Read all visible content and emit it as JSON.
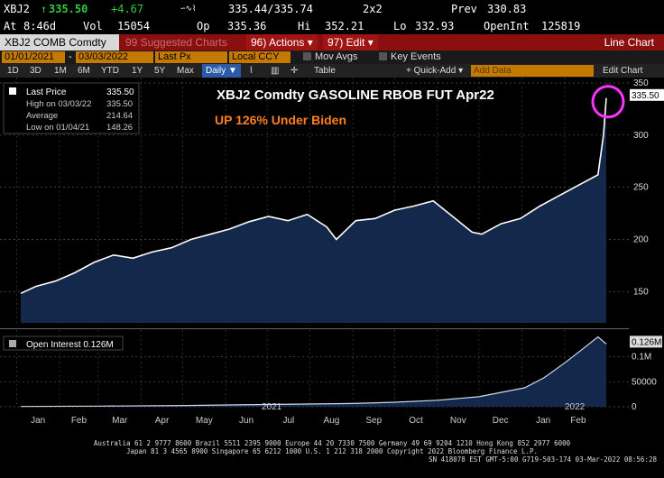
{
  "quote": {
    "ticker": "XBJ2",
    "last": "335.50",
    "change": "+4.67",
    "bid_ask": "335.44/335.74",
    "grid": "2x2",
    "prev_label": "Prev",
    "prev": "330.83",
    "at_label": "At",
    "at_time": "8:46d",
    "vol_label": "Vol",
    "vol": "15054",
    "op_label": "Op",
    "op": "335.36",
    "hi_label": "Hi",
    "hi": "352.21",
    "lo_label": "Lo",
    "lo": "332.93",
    "oi_label": "OpenInt",
    "oi": "125819"
  },
  "funcbar": {
    "security": "XBJ2 COMB Comdty",
    "suggested": "99 Suggested Charts",
    "actions": "96) Actions ▾",
    "edit": "97) Edit ▾",
    "chart_type": "Line Chart"
  },
  "daterow": {
    "start_date": "01/01/2021",
    "end_date": "03/03/2022",
    "field": "Last Px",
    "currency": "Local CCY",
    "mov_avgs": "Mov Avgs",
    "key_events": "Key Events"
  },
  "toolbar": {
    "periods": [
      "1D",
      "3D",
      "1M",
      "6M",
      "YTD",
      "1Y",
      "5Y",
      "Max"
    ],
    "frequency": "Daily ▼",
    "table": "Table",
    "quick_add": "+ Quick-Add ▾",
    "add_data_placeholder": "Add Data",
    "edit_chart": "Edit Chart"
  },
  "legend": {
    "last_price_label": "Last Price",
    "last_price": "335.50",
    "high_label": "High on 03/03/22",
    "high": "335.50",
    "average_label": "Average",
    "average": "214.64",
    "low_label": "Low on 01/04/21",
    "low": "148.26",
    "oi_label": "Open Interest 0.126M"
  },
  "annotations": {
    "title": "XBJ2 Comdty GASOLINE RBOB FUT Apr22",
    "subtitle": "UP 126% Under Biden",
    "price_tag": "335.50",
    "oi_tag": "0.126M"
  },
  "footer": {
    "line1": "Australia 61 2 9777 8600 Brazil 5511 2395 9000 Europe 44 20 7330 7500 Germany 49 69 9204 1210 Hong Kong 852 2977 6000",
    "line2": "Japan 81 3 4565 8900       Singapore 65 6212 1000       U.S. 1 212 318 2000                Copyright 2022 Bloomberg Finance L.P.",
    "line3": "SN 418078 EST  GMT-5:00 G719-503-174 03-Mar-2022 08:56:28"
  },
  "colors": {
    "background": "#000000",
    "area_fill": "#13284a",
    "line": "#ffffff",
    "amber": "#f5a623",
    "red_bar": "#8b0f0f",
    "highlight_circle": "#ff33ff",
    "subtitle": "#ff7f1e"
  },
  "chart_data": [
    {
      "type": "area",
      "title": "XBJ2 Comdty GASOLINE RBOB FUT Apr22",
      "subtitle": "UP 126% Under Biden",
      "ylabel": "",
      "ylim": [
        120,
        350
      ],
      "yticks": [
        150,
        200,
        250,
        300,
        350
      ],
      "x_axis_labels": [
        "Jan",
        "Feb",
        "Mar",
        "Apr",
        "May",
        "Jun",
        "Jul",
        "Aug",
        "Sep",
        "Oct",
        "Nov",
        "Dec",
        "Jan",
        "Feb"
      ],
      "year_labels": [
        "2021",
        "2022"
      ],
      "series": [
        {
          "name": "Last Price",
          "x": [
            "2021-01-04",
            "2021-01-15",
            "2021-01-29",
            "2021-02-12",
            "2021-02-26",
            "2021-03-12",
            "2021-03-26",
            "2021-04-09",
            "2021-04-23",
            "2021-05-07",
            "2021-05-21",
            "2021-06-04",
            "2021-06-18",
            "2021-07-02",
            "2021-07-16",
            "2021-07-30",
            "2021-08-13",
            "2021-08-20",
            "2021-09-03",
            "2021-09-17",
            "2021-10-01",
            "2021-10-15",
            "2021-10-29",
            "2021-11-12",
            "2021-11-26",
            "2021-12-03",
            "2021-12-17",
            "2021-12-31",
            "2022-01-14",
            "2022-01-28",
            "2022-02-11",
            "2022-02-25",
            "2022-03-01",
            "2022-03-03"
          ],
          "values": [
            148.26,
            155,
            160,
            168,
            178,
            185,
            182,
            188,
            192,
            200,
            205,
            210,
            217,
            222,
            218,
            224,
            212,
            200,
            218,
            220,
            228,
            232,
            237,
            222,
            207,
            205,
            215,
            220,
            232,
            242,
            252,
            262,
            300,
            335.5
          ]
        }
      ]
    },
    {
      "type": "area",
      "title": "",
      "ylim": [
        0,
        150000
      ],
      "yticks": [
        0,
        50000,
        100000
      ],
      "ytick_labels": [
        "0",
        "50000",
        "0.1M"
      ],
      "series": [
        {
          "name": "Open Interest 0.126M",
          "x": [
            "2021-01-04",
            "2021-03-01",
            "2021-05-03",
            "2021-07-01",
            "2021-09-01",
            "2021-10-01",
            "2021-11-01",
            "2021-12-01",
            "2022-01-03",
            "2022-01-17",
            "2022-02-01",
            "2022-02-15",
            "2022-02-25",
            "2022-03-03"
          ],
          "values": [
            600,
            1200,
            2500,
            4500,
            6500,
            9000,
            13000,
            20000,
            38000,
            58000,
            88000,
            118000,
            140000,
            125819
          ]
        }
      ]
    }
  ]
}
